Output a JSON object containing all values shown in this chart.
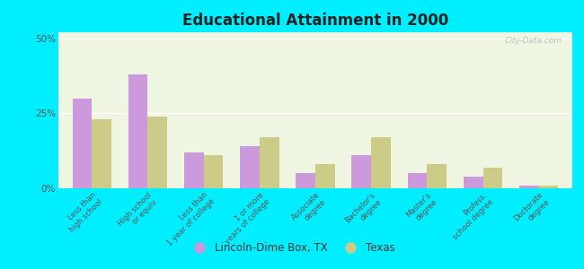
{
  "title": "Educational Attainment in 2000",
  "categories": [
    "Less than\nhigh school",
    "High school\nor equiv.",
    "Less than\n1 year of college",
    "1 or more\nyears of college",
    "Associate\ndegree",
    "Bachelor's\ndegree",
    "Master's\ndegree",
    "Profess.\nschool degree",
    "Doctorate\ndegree"
  ],
  "lincoln_values": [
    30,
    38,
    12,
    14,
    5,
    11,
    5,
    4,
    1
  ],
  "texas_values": [
    23,
    24,
    11,
    17,
    8,
    17,
    8,
    7,
    1
  ],
  "lincoln_color": "#cc99dd",
  "texas_color": "#cccc88",
  "background_outer": "#00eeff",
  "background_inner": "#eef5e0",
  "yticks": [
    0,
    25,
    50
  ],
  "ylim": [
    0,
    52
  ],
  "ylabel_labels": [
    "0%",
    "25%",
    "50%"
  ],
  "legend_lincoln": "Lincoln-Dime Box, TX",
  "legend_texas": "Texas",
  "bar_width": 0.35,
  "watermark": "City-Data.com"
}
